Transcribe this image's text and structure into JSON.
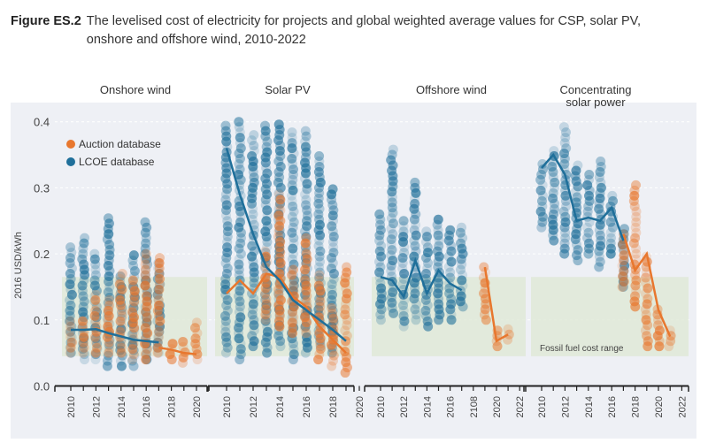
{
  "figure_label": "Figure ES.2",
  "figure_title": "The levelised cost of electricity for projects and global weighted average values for CSP, solar PV, onshore and offshore wind, 2010-2022",
  "chart_data": {
    "type": "scatter",
    "ylabel": "2016 USD/kWh",
    "ylim": [
      0,
      0.4
    ],
    "yticks": [
      "0.0",
      "0.1",
      "0.2",
      "0.3",
      "0.4"
    ],
    "legend": [
      {
        "name": "Auction database",
        "color": "#e8772e"
      },
      {
        "name": "LCOE database",
        "color": "#1f6f9a"
      }
    ],
    "legend_position": "top-left",
    "band": {
      "label": "Fossil fuel cost range",
      "range": [
        0.045,
        0.165
      ],
      "color": "#dfe8d6"
    },
    "panels": [
      {
        "title": "Onshore wind",
        "xticks": [
          "2010",
          "2012",
          "2014",
          "2016",
          "2018",
          "2020"
        ],
        "xrange": [
          2010,
          2021
        ],
        "lcoe_line": {
          "x": [
            2010,
            2011,
            2012,
            2013,
            2014,
            2015,
            2016,
            2017
          ],
          "y": [
            0.085,
            0.085,
            0.086,
            0.08,
            0.075,
            0.07,
            0.068,
            0.066
          ]
        },
        "auction_line": {
          "x": [
            2017,
            2018,
            2019,
            2020
          ],
          "y": [
            0.058,
            0.055,
            0.05,
            0.048
          ]
        },
        "lcoe_scatter": [
          [
            2010,
            0.05,
            0.21
          ],
          [
            2011,
            0.04,
            0.225
          ],
          [
            2012,
            0.04,
            0.2
          ],
          [
            2013,
            0.03,
            0.26
          ],
          [
            2014,
            0.03,
            0.17
          ],
          [
            2015,
            0.03,
            0.2
          ],
          [
            2016,
            0.04,
            0.25
          ],
          [
            2017,
            0.05,
            0.19
          ]
        ],
        "auction_scatter": [
          [
            2010,
            0.05,
            0.1
          ],
          [
            2011,
            0.05,
            0.1
          ],
          [
            2012,
            0.05,
            0.14
          ],
          [
            2013,
            0.05,
            0.13
          ],
          [
            2014,
            0.05,
            0.17
          ],
          [
            2015,
            0.04,
            0.165
          ],
          [
            2016,
            0.04,
            0.205
          ],
          [
            2017,
            0.05,
            0.2
          ],
          [
            2018,
            0.04,
            0.07
          ],
          [
            2019,
            0.035,
            0.07
          ],
          [
            2020,
            0.04,
            0.1
          ]
        ]
      },
      {
        "title": "Solar PV",
        "xticks": [
          "2010",
          "2012",
          "2014",
          "2016",
          "2018",
          "2020"
        ],
        "xrange": [
          2010,
          2020
        ],
        "lcoe_line": {
          "x": [
            2010,
            2011,
            2012,
            2013,
            2014,
            2015,
            2016,
            2017,
            2018,
            2019
          ],
          "y": [
            0.36,
            0.29,
            0.23,
            0.18,
            0.16,
            0.13,
            0.115,
            0.1,
            0.085,
            0.068
          ]
        },
        "auction_line": {
          "x": [
            2010,
            2011,
            2012,
            2013,
            2014,
            2015,
            2016,
            2017,
            2018,
            2019
          ],
          "y": [
            0.14,
            0.16,
            0.14,
            0.17,
            0.165,
            0.135,
            0.12,
            0.09,
            0.07,
            0.05
          ]
        },
        "lcoe_scatter": [
          [
            2010,
            0.05,
            0.4
          ],
          [
            2011,
            0.04,
            0.4
          ],
          [
            2012,
            0.06,
            0.38
          ],
          [
            2013,
            0.05,
            0.4
          ],
          [
            2014,
            0.06,
            0.4
          ],
          [
            2015,
            0.04,
            0.39
          ],
          [
            2016,
            0.05,
            0.39
          ],
          [
            2017,
            0.06,
            0.355
          ],
          [
            2018,
            0.05,
            0.3
          ]
        ],
        "auction_scatter": [
          [
            2013,
            0.1,
            0.21
          ],
          [
            2014,
            0.09,
            0.29
          ],
          [
            2015,
            0.08,
            0.18
          ],
          [
            2016,
            0.08,
            0.23
          ],
          [
            2017,
            0.04,
            0.17
          ],
          [
            2018,
            0.03,
            0.12
          ],
          [
            2019,
            0.02,
            0.185
          ]
        ]
      },
      {
        "title": "Offshore wind",
        "xticks": [
          "2010",
          "2012",
          "2014",
          "2016",
          "2108",
          "2020",
          "2022"
        ],
        "xrange": [
          2010,
          2022
        ],
        "lcoe_line": {
          "x": [
            2010,
            2011,
            2012,
            2013,
            2014,
            2015,
            2016,
            2017
          ],
          "y": [
            0.165,
            0.16,
            0.135,
            0.19,
            0.14,
            0.175,
            0.155,
            0.145
          ]
        },
        "auction_line": {
          "x": [
            2019,
            2020,
            2021
          ],
          "y": [
            0.18,
            0.068,
            0.078
          ]
        },
        "lcoe_scatter": [
          [
            2010,
            0.1,
            0.26
          ],
          [
            2011,
            0.11,
            0.365
          ],
          [
            2012,
            0.09,
            0.25
          ],
          [
            2013,
            0.1,
            0.315
          ],
          [
            2014,
            0.09,
            0.24
          ],
          [
            2015,
            0.1,
            0.255
          ],
          [
            2016,
            0.1,
            0.24
          ],
          [
            2017,
            0.12,
            0.24
          ]
        ],
        "auction_scatter": [
          [
            2019,
            0.1,
            0.18
          ],
          [
            2020,
            0.06,
            0.09
          ],
          [
            2021,
            0.07,
            0.09
          ]
        ]
      },
      {
        "title": "Concentrating solar power",
        "xticks": [
          "2010",
          "2012",
          "2014",
          "2016",
          "2018",
          "2020",
          "2022"
        ],
        "xrange": [
          2010,
          2022
        ],
        "lcoe_line": {
          "x": [
            2010,
            2011,
            2012,
            2013,
            2014,
            2015,
            2016,
            2017
          ],
          "y": [
            0.33,
            0.35,
            0.32,
            0.25,
            0.255,
            0.25,
            0.27,
            0.22
          ]
        },
        "auction_line": {
          "x": [
            2017,
            2018,
            2019,
            2020,
            2021
          ],
          "y": [
            0.23,
            0.175,
            0.2,
            0.115,
            0.075
          ]
        },
        "lcoe_scatter": [
          [
            2010,
            0.24,
            0.34
          ],
          [
            2011,
            0.22,
            0.36
          ],
          [
            2012,
            0.2,
            0.395
          ],
          [
            2013,
            0.19,
            0.34
          ],
          [
            2014,
            0.2,
            0.32
          ],
          [
            2015,
            0.18,
            0.34
          ],
          [
            2016,
            0.2,
            0.29
          ],
          [
            2017,
            0.15,
            0.24
          ]
        ],
        "auction_scatter": [
          [
            2017,
            0.15,
            0.23
          ],
          [
            2018,
            0.12,
            0.31
          ],
          [
            2019,
            0.06,
            0.2
          ],
          [
            2020,
            0.06,
            0.12
          ],
          [
            2021,
            0.06,
            0.09
          ]
        ]
      }
    ]
  }
}
